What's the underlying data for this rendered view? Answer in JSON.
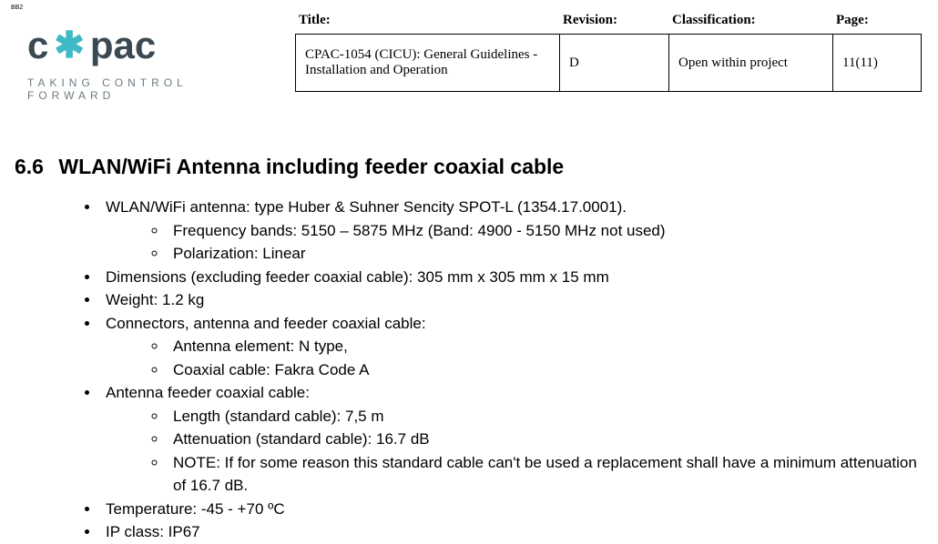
{
  "corner_tag": "BB2",
  "logo": {
    "part1": "c",
    "star": "✱",
    "part2": "pac",
    "tagline": "TAKING CONTROL FORWARD"
  },
  "meta": {
    "headers": {
      "title": "Title:",
      "revision": "Revision:",
      "classification": "Classification:",
      "page": "Page:"
    },
    "values": {
      "title": "CPAC-1054 (CICU): General Guidelines - Installation and Operation",
      "revision": "D",
      "classification": "Open within project",
      "page": "11(11)"
    }
  },
  "section": {
    "number": "6.6",
    "title": "WLAN/WiFi Antenna including feeder coaxial cable"
  },
  "bullets": {
    "b1": "WLAN/WiFi antenna: type Huber & Suhner Sencity SPOT-L (1354.17.0001).",
    "b1s1": "Frequency bands: 5150 – 5875 MHz (Band: 4900 - 5150 MHz not used)",
    "b1s2": "Polarization: Linear",
    "b2": "Dimensions (excluding feeder coaxial cable): 305 mm x 305 mm x 15 mm",
    "b3": "Weight: 1.2 kg",
    "b4": "Connectors, antenna and feeder coaxial cable:",
    "b4s1": "Antenna element: N type,",
    "b4s2": "Coaxial cable: Fakra Code A",
    "b5": "Antenna feeder coaxial cable:",
    "b5s1": "Length (standard cable): 7,5 m",
    "b5s2": "Attenuation (standard cable): 16.7 dB",
    "b5s3": "NOTE: If for some reason this standard cable can't be used a replacement shall have a minimum attenuation of 16.7 dB.",
    "b6": "Temperature: -45 - +70 ºC",
    "b7": "IP class: IP67"
  }
}
